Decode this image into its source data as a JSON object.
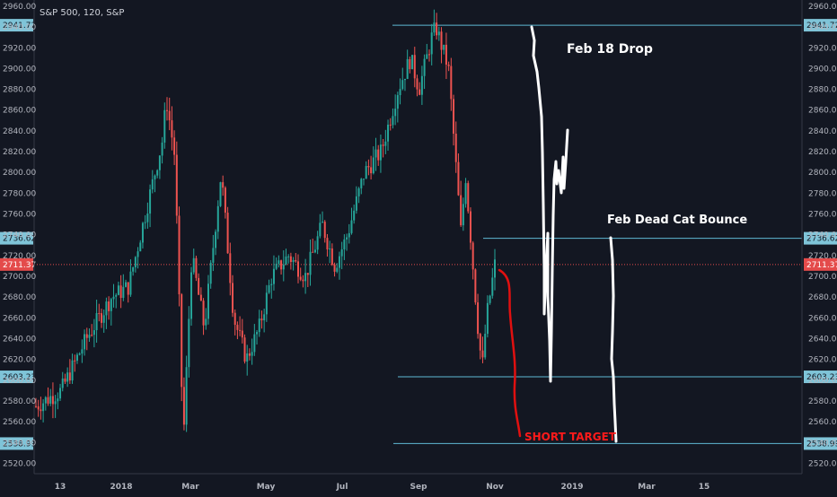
{
  "chart_data": {
    "type": "candlestick",
    "title": "S&P 500, 120, S&P",
    "y_axis": {
      "min": 2510,
      "max": 2966,
      "ticks": [
        2520,
        2540,
        2560,
        2580,
        2600,
        2620,
        2640,
        2660,
        2680,
        2700,
        2720,
        2740,
        2760,
        2780,
        2800,
        2820,
        2840,
        2860,
        2880,
        2900,
        2920,
        2940,
        2960
      ],
      "tick_labels": [
        "2520.00",
        "2540.00",
        "2560.00",
        "2580.00",
        "2600.00",
        "2620.00",
        "2640.00",
        "2660.00",
        "2680.00",
        "2700.00",
        "2720.00",
        "2740.00",
        "2760.00",
        "2780.00",
        "2800.00",
        "2820.00",
        "2840.00",
        "2860.00",
        "2880.00",
        "2900.00",
        "2920.00",
        "2940.00",
        "2960.00"
      ]
    },
    "x_axis": {
      "labels": [
        "13",
        "2018",
        "Mar",
        "May",
        "Jul",
        "Sep",
        "Nov",
        "2019",
        "Mar",
        "15"
      ]
    },
    "levels": [
      {
        "value": 2941.72,
        "label": "2941.72"
      },
      {
        "value": 2736.62,
        "label": "2736.62"
      },
      {
        "value": 2603.23,
        "label": "2603.23"
      },
      {
        "value": 2538.99,
        "label": "2538.99"
      }
    ],
    "last_price": {
      "value": 2711.37,
      "label": "2711.37"
    },
    "price_path": [
      {
        "t": 0.0,
        "v": 2575
      },
      {
        "t": 0.03,
        "v": 2590
      },
      {
        "t": 0.06,
        "v": 2640
      },
      {
        "t": 0.09,
        "v": 2680
      },
      {
        "t": 0.11,
        "v": 2690
      },
      {
        "t": 0.13,
        "v": 2760
      },
      {
        "t": 0.15,
        "v": 2830
      },
      {
        "t": 0.155,
        "v": 2870
      },
      {
        "t": 0.165,
        "v": 2815
      },
      {
        "t": 0.175,
        "v": 2540
      },
      {
        "t": 0.185,
        "v": 2720
      },
      {
        "t": 0.2,
        "v": 2650
      },
      {
        "t": 0.22,
        "v": 2800
      },
      {
        "t": 0.235,
        "v": 2660
      },
      {
        "t": 0.25,
        "v": 2620
      },
      {
        "t": 0.265,
        "v": 2650
      },
      {
        "t": 0.28,
        "v": 2700
      },
      {
        "t": 0.3,
        "v": 2720
      },
      {
        "t": 0.32,
        "v": 2700
      },
      {
        "t": 0.34,
        "v": 2750
      },
      {
        "t": 0.355,
        "v": 2710
      },
      {
        "t": 0.37,
        "v": 2740
      },
      {
        "t": 0.39,
        "v": 2800
      },
      {
        "t": 0.41,
        "v": 2820
      },
      {
        "t": 0.43,
        "v": 2880
      },
      {
        "t": 0.445,
        "v": 2910
      },
      {
        "t": 0.455,
        "v": 2880
      },
      {
        "t": 0.47,
        "v": 2930
      },
      {
        "t": 0.475,
        "v": 2940
      },
      {
        "t": 0.49,
        "v": 2900
      },
      {
        "t": 0.505,
        "v": 2740
      },
      {
        "t": 0.51,
        "v": 2800
      },
      {
        "t": 0.525,
        "v": 2650
      },
      {
        "t": 0.53,
        "v": 2610
      },
      {
        "t": 0.535,
        "v": 2660
      },
      {
        "t": 0.545,
        "v": 2711
      }
    ],
    "annotations": [
      {
        "text": "Feb 18 Drop",
        "color": "#ffffff"
      },
      {
        "text": "Feb Dead Cat Bounce",
        "color": "#ffffff"
      },
      {
        "text": "SHORT TARGET",
        "color": "#ff1a1a"
      }
    ]
  },
  "colors": {
    "background": "#131722",
    "up": "#26a69a",
    "down": "#ef5350",
    "level_line": "#5fb8d4",
    "level_label_bg": "#7fc4d8",
    "last_price": "#e44b4b",
    "drawing": "#ffffff",
    "projection": "#e01010"
  }
}
